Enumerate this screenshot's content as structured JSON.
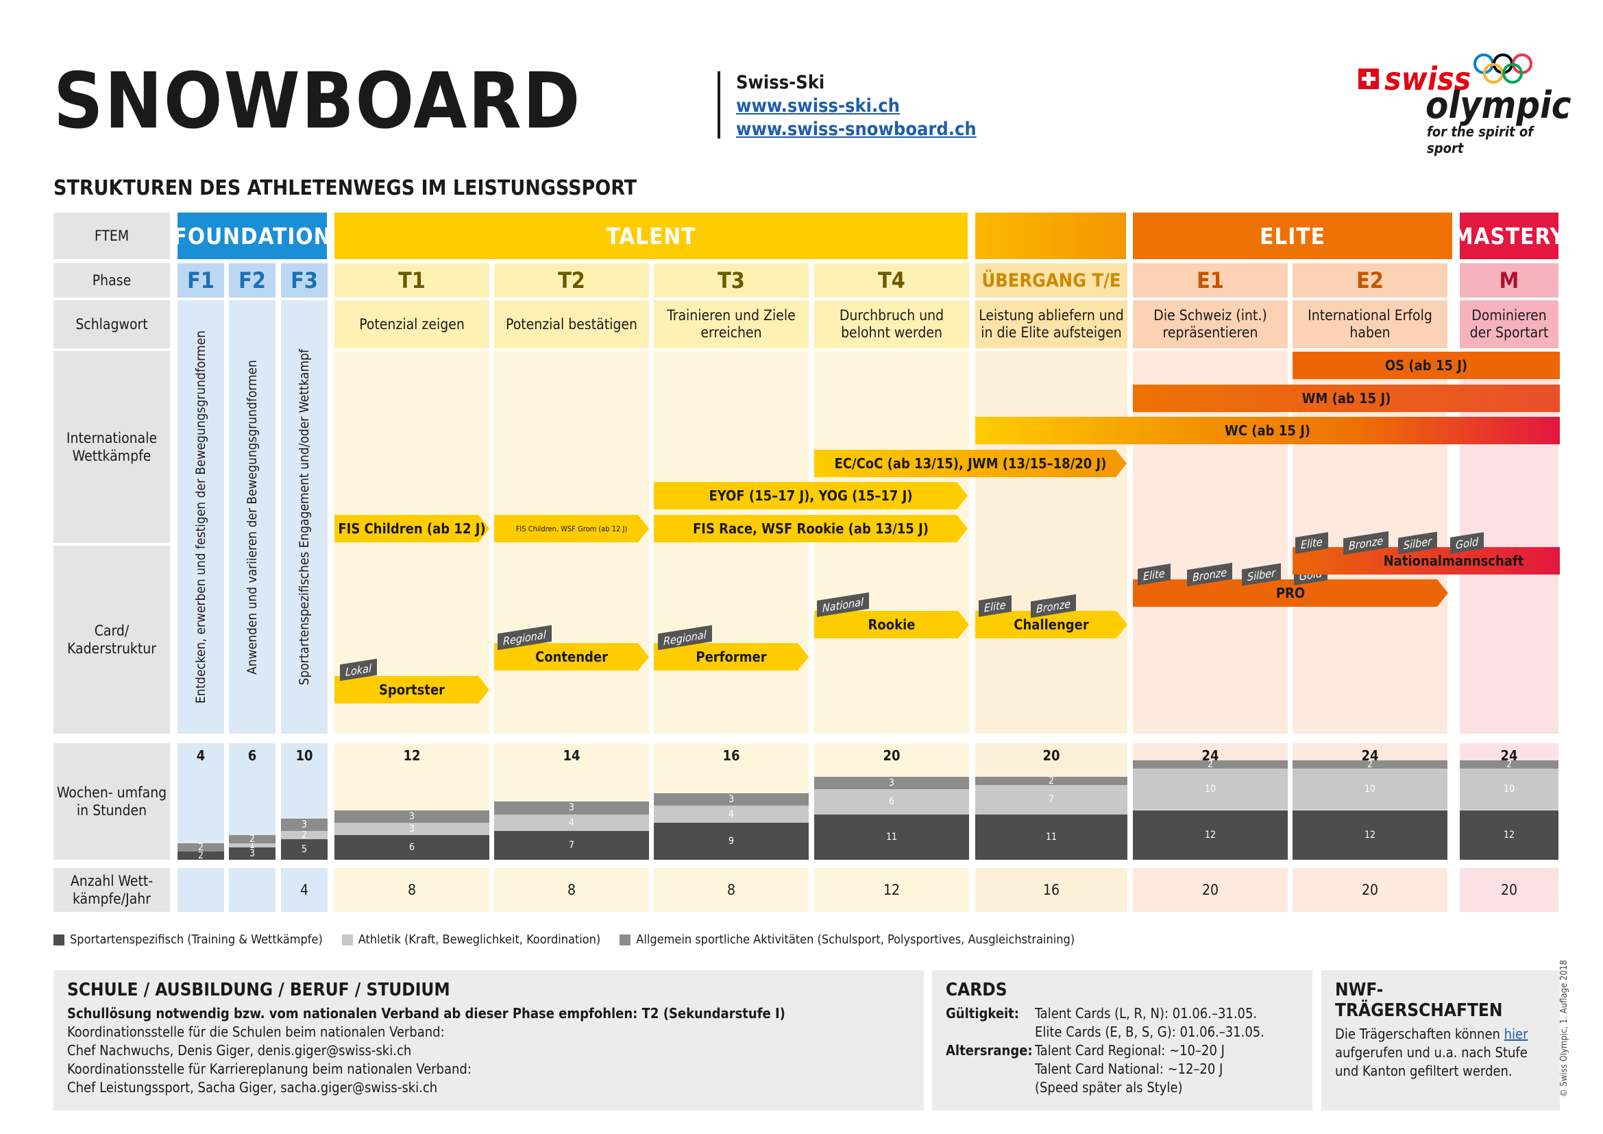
{
  "title": "SNOWBOARD",
  "subtitle": "STRUKTUREN DES ATHLETENWEGS IM LEISTUNGSSPORT",
  "organization": {
    "name": "Swiss-Ski",
    "links": [
      "www.swiss-ski.ch",
      "www.swiss-snowboard.ch"
    ]
  },
  "logo": {
    "word1": "swiss",
    "word2": "olympic",
    "tagline": "for the spirit of sport"
  },
  "row_labels": {
    "ftem": "FTEM",
    "phase": "Phase",
    "schlagwort": "Schlagwort",
    "international": "Internationale Wettkämpfe",
    "card": "Card/ Kaderstruktur",
    "wochenumfang": "Wochen- umfang in Stunden",
    "wettkaempfe": "Anzahl Wett- kämpfe/Jahr"
  },
  "ftem": {
    "foundation": "FOUNDATION",
    "talent": "TALENT",
    "elite": "ELITE",
    "mastery": "MASTERY"
  },
  "phases": [
    "F1",
    "F2",
    "F3",
    "T1",
    "T2",
    "T3",
    "T4",
    "ÜBERGANG T/E",
    "E1",
    "E2",
    "M"
  ],
  "keywords": [
    "Potenzial zeigen",
    "Potenzial bestätigen",
    "Trainieren und Ziele erreichen",
    "Durchbruch und belohnt werden",
    "Leistung abliefern und in die Elite aufsteigen",
    "Die Schweiz (int.) repräsentieren",
    "International Erfolg haben",
    "Dominieren der Sportart"
  ],
  "foundation_texts": [
    "Entdecken, erwerben und festigen der Bewegungsgrundformen",
    "Anwenden und variieren der Bewegungsgrundformen",
    "Sportartenspezifisches Engagement und/oder Wettkampf"
  ],
  "competitions": {
    "os": "OS (ab 15 J)",
    "wm": "WM (ab 15 J)",
    "wc": "WC (ab 15 J)",
    "ec": "EC/CoC (ab 13/15), JWM (13/15–18/20 J)",
    "eyof": "EYOF (15–17 J), YOG (15–17 J)",
    "fis_children": "FIS Children (ab 12 J)",
    "fis_children_small": "FIS Children, WSF Grom (ab 12 J)",
    "fis_race": "FIS Race, WSF Rookie (ab 13/15 J)"
  },
  "cards": {
    "sportster": "Sportster",
    "lokal": "Lokal",
    "contender": "Contender",
    "regional1": "Regional",
    "performer": "Performer",
    "regional2": "Regional",
    "rookie": "Rookie",
    "national": "National",
    "challenger": "Challenger",
    "elite1": "Elite",
    "bronze1": "Bronze",
    "pro": "PRO",
    "elite2": "Elite",
    "bronze2": "Bronze",
    "silber2": "Silber",
    "gold2": "Gold",
    "nationalmannschaft": "Nationalmannschaft",
    "elite3": "Elite",
    "bronze3": "Bronze",
    "silber3": "Silber",
    "gold3": "Gold"
  },
  "hours": [
    {
      "total": 4,
      "specific": 2,
      "athletic": 0,
      "general": 2
    },
    {
      "total": 6,
      "specific": 3,
      "athletic": 1,
      "general": 2
    },
    {
      "total": 10,
      "specific": 5,
      "athletic": 2,
      "general": 3
    },
    {
      "total": 12,
      "specific": 6,
      "athletic": 3,
      "general": 3
    },
    {
      "total": 14,
      "specific": 7,
      "athletic": 4,
      "general": 3
    },
    {
      "total": 16,
      "specific": 9,
      "athletic": 4,
      "general": 3
    },
    {
      "total": 20,
      "specific": 11,
      "athletic": 6,
      "general": 3
    },
    {
      "total": 20,
      "specific": 11,
      "athletic": 7,
      "general": 2
    },
    {
      "total": 24,
      "specific": 12,
      "athletic": 10,
      "general": 2
    },
    {
      "total": 24,
      "specific": 12,
      "athletic": 10,
      "general": 2
    },
    {
      "total": 24,
      "specific": 12,
      "athletic": 10,
      "general": 2
    }
  ],
  "competitions_per_year": [
    "",
    "",
    "4",
    "8",
    "8",
    "8",
    "12",
    "16",
    "20",
    "20",
    "20"
  ],
  "legend": [
    "Sportartenspezifisch (Training & Wettkämpfe)",
    "Athletik (Kraft, Beweglichkeit, Koordination)",
    "Allgemein sportliche Aktivitäten (Schulsport, Polysportives, Ausgleichstraining)"
  ],
  "colors": {
    "foundation": "#1a8fd6",
    "talent": "#ffcc00",
    "transition": "#f7a600",
    "elite": "#ee7203",
    "mastery": "#e3173f",
    "specific": "#4d4d4d",
    "athletic": "#c8c8c8",
    "general": "#8c8c8c"
  },
  "school": {
    "title": "SCHULE / AUSBILDUNG / BERUF / STUDIUM",
    "bold_line": "Schullösung notwendig bzw. vom nationalen Verband ab dieser Phase empfohlen: T2 (Sekundarstufe I)",
    "lines": [
      "Koordinationsstelle für die Schulen beim nationalen Verband:",
      "Chef Nachwuchs, Denis Giger, denis.giger@swiss-ski.ch",
      "Koordinationsstelle für Karriereplanung beim nationalen Verband:",
      "Chef Leistungssport, Sacha Giger, sacha.giger@swiss-ski.ch"
    ]
  },
  "cards_box": {
    "title": "CARDS",
    "validity_label": "Gültigkeit:",
    "validity": [
      "Talent Cards (L, R, N): 01.06.–31.05.",
      "Elite Cards (E, B, S, G): 01.06.–31.05."
    ],
    "age_label": "Altersrange:",
    "age": [
      "Talent Card Regional: ~10–20 J",
      "Talent Card National: ~12–20 J",
      "(Speed später als Style)"
    ]
  },
  "nwf": {
    "title": "NWF-TRÄGERSCHAFTEN",
    "text_before": "Die Trägerschaften können ",
    "link": "hier",
    "text_after": " aufgerufen und u.a. nach Stufe und Kanton gefiltert werden."
  },
  "copyright": "© Swiss Olympic, 1. Auflage 2018"
}
